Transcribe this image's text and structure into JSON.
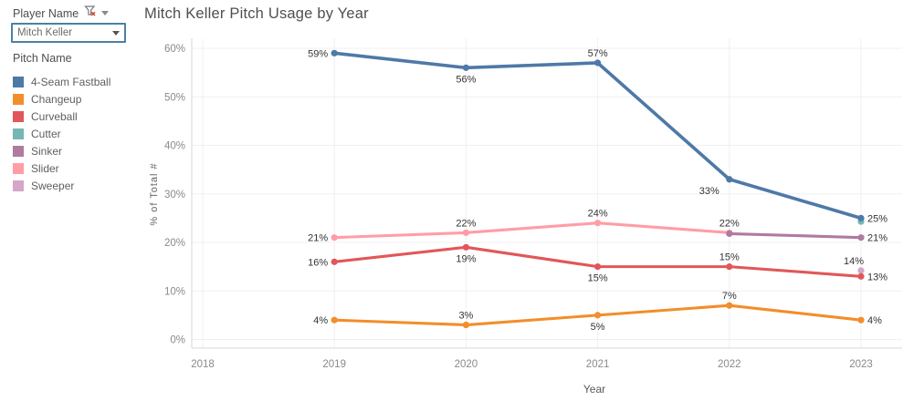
{
  "filter": {
    "label": "Player Name",
    "value": "Mitch Keller"
  },
  "legend": {
    "title": "Pitch Name",
    "items": [
      {
        "label": "4-Seam Fastball",
        "color": "#4e79a7"
      },
      {
        "label": "Changeup",
        "color": "#f28e2b"
      },
      {
        "label": "Curveball",
        "color": "#e15759"
      },
      {
        "label": "Cutter",
        "color": "#76b7b2"
      },
      {
        "label": "Sinker",
        "color": "#b07aa1"
      },
      {
        "label": "Slider",
        "color": "#ff9da7"
      },
      {
        "label": "Sweeper",
        "color": "#d4a6c8"
      }
    ]
  },
  "chart": {
    "title": "Mitch Keller Pitch Usage by Year"
  },
  "chart_data": {
    "type": "line",
    "title": "Mitch Keller Pitch Usage by Year",
    "xlabel": "Year",
    "ylabel": "% of Total #",
    "grid": true,
    "legend_position": "left",
    "xlim": [
      2017.9,
      2023.3
    ],
    "ylim": [
      0,
      62
    ],
    "x_ticks": [
      "2018",
      "2019",
      "2020",
      "2021",
      "2022",
      "2023"
    ],
    "y_ticks": [
      {
        "value": 0,
        "label": "0%"
      },
      {
        "value": 10,
        "label": "10%"
      },
      {
        "value": 20,
        "label": "20%"
      },
      {
        "value": 30,
        "label": "30%"
      },
      {
        "value": 40,
        "label": "40%"
      },
      {
        "value": 50,
        "label": "50%"
      },
      {
        "value": 60,
        "label": "60%"
      }
    ],
    "axis_color": "#8a8a8a",
    "grid_color": "#f0f0f0",
    "rule_color": "#d7d7d7",
    "label_color": "#333333",
    "series": [
      {
        "name": "Slider",
        "color": "#ff9da7",
        "points": [
          {
            "x": 2019,
            "y": 21,
            "label": "21%",
            "label_pos": "left"
          },
          {
            "x": 2020,
            "y": 22,
            "label": "22%",
            "label_pos": "above"
          },
          {
            "x": 2021,
            "y": 24,
            "label": "24%",
            "label_pos": "above"
          },
          {
            "x": 2022,
            "y": 22,
            "label": "22%",
            "label_pos": "above"
          }
        ]
      },
      {
        "name": "Sinker",
        "color": "#b07aa1",
        "points": [
          {
            "x": 2022,
            "y": 21.8,
            "label": "",
            "label_pos": "none"
          },
          {
            "x": 2023,
            "y": 21,
            "label": "21%",
            "label_pos": "right"
          }
        ]
      },
      {
        "name": "Cutter",
        "color": "#76b7b2",
        "points": [
          {
            "x": 2023,
            "y": 24.3,
            "label": "",
            "label_pos": "none"
          }
        ]
      },
      {
        "name": "4-Seam Fastball",
        "color": "#4e79a7",
        "points": [
          {
            "x": 2019,
            "y": 59,
            "label": "59%",
            "label_pos": "left"
          },
          {
            "x": 2020,
            "y": 56,
            "label": "56%",
            "label_pos": "below"
          },
          {
            "x": 2021,
            "y": 57,
            "label": "57%",
            "label_pos": "above"
          },
          {
            "x": 2022,
            "y": 33,
            "label": "33%",
            "label_pos": "below-left"
          },
          {
            "x": 2023,
            "y": 25,
            "label": "25%",
            "label_pos": "right"
          }
        ]
      },
      {
        "name": "Sweeper",
        "color": "#d4a6c8",
        "points": [
          {
            "x": 2023,
            "y": 14.2,
            "label": "14%",
            "label_pos": "above-left"
          }
        ]
      },
      {
        "name": "Curveball",
        "color": "#e15759",
        "points": [
          {
            "x": 2019,
            "y": 16,
            "label": "16%",
            "label_pos": "left"
          },
          {
            "x": 2020,
            "y": 19,
            "label": "19%",
            "label_pos": "below"
          },
          {
            "x": 2021,
            "y": 15,
            "label": "15%",
            "label_pos": "below"
          },
          {
            "x": 2022,
            "y": 15,
            "label": "15%",
            "label_pos": "above"
          },
          {
            "x": 2023,
            "y": 13,
            "label": "13%",
            "label_pos": "right"
          }
        ]
      },
      {
        "name": "Changeup",
        "color": "#f28e2b",
        "points": [
          {
            "x": 2019,
            "y": 4,
            "label": "4%",
            "label_pos": "left"
          },
          {
            "x": 2020,
            "y": 3,
            "label": "3%",
            "label_pos": "above"
          },
          {
            "x": 2021,
            "y": 5,
            "label": "5%",
            "label_pos": "below"
          },
          {
            "x": 2022,
            "y": 7,
            "label": "7%",
            "label_pos": "above"
          },
          {
            "x": 2023,
            "y": 4,
            "label": "4%",
            "label_pos": "right"
          }
        ]
      }
    ]
  }
}
